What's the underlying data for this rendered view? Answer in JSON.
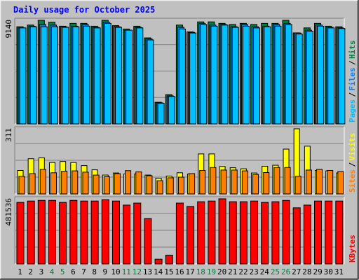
{
  "title": "Daily usage for October 2025",
  "colors": {
    "frame_bg": "#C0C0C0",
    "plot_bg": "#C0C0C0",
    "title": "#0000FF",
    "hits": "#008040",
    "files": "#0080FF",
    "pages": "#00C0FF",
    "visits": "#FFFF00",
    "sites": "#FF8000",
    "kbytes": "#FF0000",
    "weekend_label": "#008040",
    "weekday_label": "#000000"
  },
  "chart_data": {
    "type": "bar",
    "days": [
      1,
      2,
      3,
      4,
      5,
      6,
      7,
      8,
      9,
      10,
      11,
      12,
      13,
      14,
      15,
      16,
      17,
      18,
      19,
      20,
      21,
      22,
      23,
      24,
      25,
      26,
      27,
      28,
      29,
      30,
      31
    ],
    "weekend_days": [
      4,
      5,
      11,
      12,
      18,
      19,
      25,
      26
    ],
    "panels": [
      {
        "id": "hits-files-pages",
        "max_label": "9140",
        "ylim": [
          0,
          9140
        ],
        "legend": [
          "Pages",
          "Files",
          "Hits"
        ],
        "series": [
          {
            "name": "Hits",
            "values": [
              8570,
              8720,
              9140,
              8970,
              8620,
              8870,
              8870,
              8620,
              9140,
              8670,
              8370,
              8620,
              7590,
              1910,
              2580,
              8720,
              8120,
              9000,
              9000,
              8870,
              8770,
              8870,
              8770,
              8870,
              8870,
              9140,
              8030,
              8470,
              8870,
              8620,
              8570
            ]
          },
          {
            "name": "Files",
            "values": [
              8470,
              8620,
              8770,
              8720,
              8570,
              8620,
              8770,
              8520,
              8970,
              8570,
              8270,
              8520,
              7500,
              1860,
              2470,
              8520,
              8070,
              8870,
              8720,
              8770,
              8570,
              8770,
              8570,
              8620,
              8770,
              8870,
              8020,
              8270,
              8720,
              8520,
              8470
            ]
          },
          {
            "name": "Pages",
            "values": [
              8470,
              8570,
              8570,
              8570,
              8520,
              8570,
              8620,
              8470,
              8870,
              8520,
              8270,
              8470,
              7410,
              1820,
              2420,
              8370,
              8020,
              8770,
              8620,
              8720,
              8520,
              8620,
              8470,
              8570,
              8620,
              8770,
              7930,
              8180,
              8620,
              8470,
              8420
            ]
          }
        ]
      },
      {
        "id": "visits-sites",
        "max_label": "311",
        "ylim": [
          0,
          311
        ],
        "legend": [
          "Sites",
          "Visits"
        ],
        "series": [
          {
            "name": "Visits",
            "values": [
              112,
              168,
              172,
              150,
              155,
              150,
              135,
              115,
              90,
              100,
              95,
              95,
              90,
              75,
              85,
              101,
              95,
              191,
              191,
              131,
              125,
              120,
              100,
              132,
              137,
              214,
              311,
              228,
              112,
              110,
              100
            ]
          },
          {
            "name": "Sites",
            "values": [
              84,
              97,
              117,
              101,
              108,
              110,
              104,
              90,
              82,
              97,
              111,
              105,
              87,
              63,
              77,
              80,
              97,
              112,
              126,
              114,
              114,
              110,
              93,
              102,
              126,
              126,
              84,
              114,
              117,
              112,
              107
            ]
          }
        ]
      },
      {
        "id": "kbytes",
        "max_label": "481536",
        "ylim": [
          0,
          481536
        ],
        "legend": [
          "KBytes"
        ],
        "series": [
          {
            "name": "KBytes",
            "values": [
              455000,
              465000,
              470000,
              470000,
              455000,
              470000,
              465000,
              465000,
              475000,
              465000,
              435000,
              450000,
              335000,
              35000,
              65000,
              450000,
              425000,
              460000,
              465000,
              481536,
              460000,
              460000,
              465000,
              455000,
              460000,
              470000,
              415000,
              435000,
              465000,
              465000,
              465000
            ]
          }
        ]
      }
    ]
  }
}
